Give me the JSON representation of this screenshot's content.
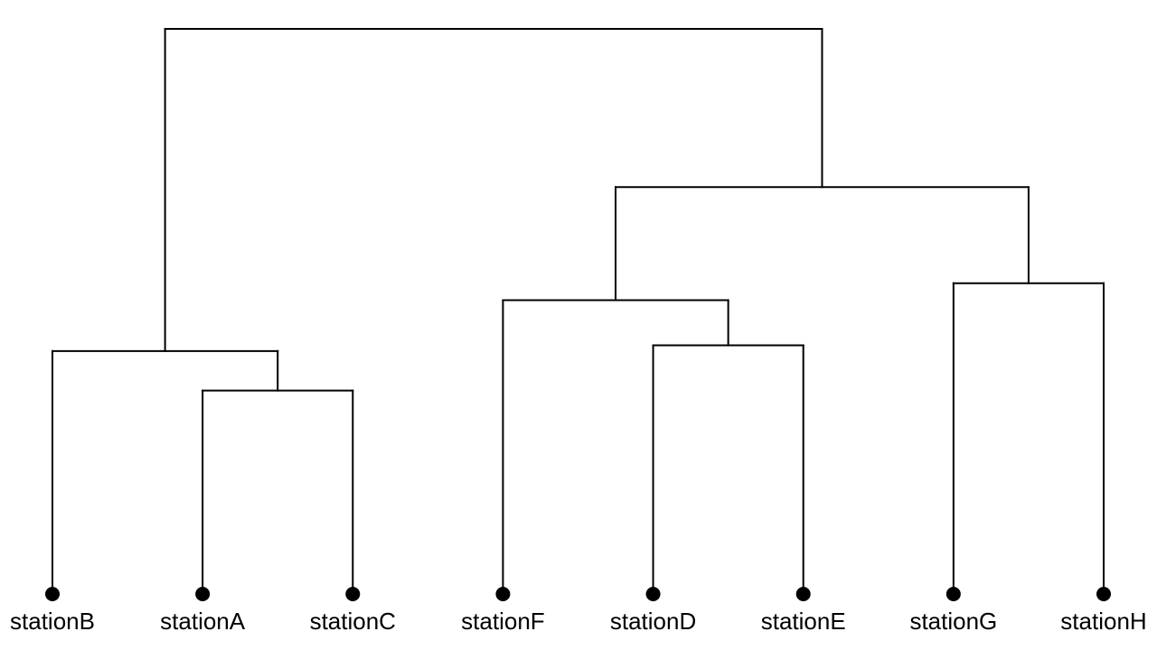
{
  "diagram": {
    "type": "dendrogram",
    "leaves": [
      "stationB",
      "stationA",
      "stationC",
      "stationF",
      "stationD",
      "stationE",
      "stationG",
      "stationH"
    ],
    "merges": [
      {
        "id": "m1",
        "children": [
          "stationA",
          "stationC"
        ],
        "height": 0.36
      },
      {
        "id": "m2",
        "children": [
          "stationB",
          "m1"
        ],
        "height": 0.43
      },
      {
        "id": "m3",
        "children": [
          "stationD",
          "stationE"
        ],
        "height": 0.44
      },
      {
        "id": "m4",
        "children": [
          "stationF",
          "m3"
        ],
        "height": 0.52
      },
      {
        "id": "m5",
        "children": [
          "stationG",
          "stationH"
        ],
        "height": 0.55
      },
      {
        "id": "m6",
        "children": [
          "m4",
          "m5"
        ],
        "height": 0.72
      },
      {
        "id": "m7",
        "children": [
          "m2",
          "m6"
        ],
        "height": 1.0
      }
    ],
    "colors": {
      "line": "#000000",
      "dot": "#000000",
      "label": "#000000",
      "background": "#ffffff"
    }
  }
}
